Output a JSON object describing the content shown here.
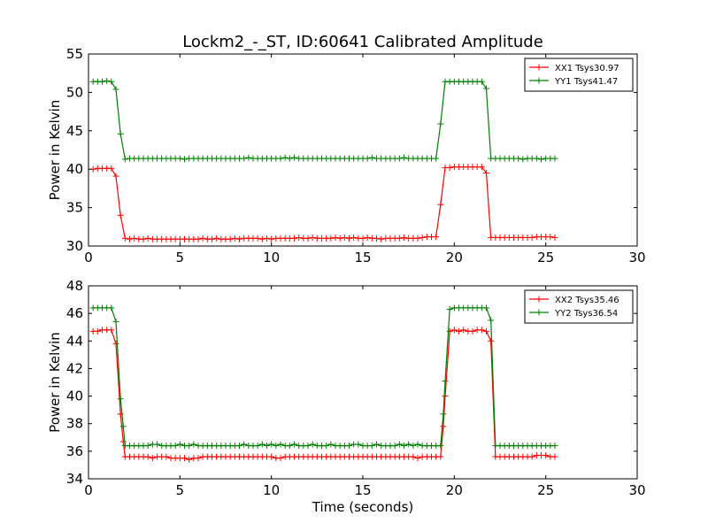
{
  "figure": {
    "title": "Lockm2_-_ST, ID:60641 Calibrated Amplitude",
    "xlabel": "Time (seconds)"
  },
  "chart_data": [
    {
      "type": "line",
      "ylabel": "Power in Kelvin",
      "xlim": [
        0,
        30
      ],
      "ylim": [
        30,
        55
      ],
      "xticks": [
        0,
        5,
        10,
        15,
        20,
        25,
        30
      ],
      "yticks": [
        30,
        35,
        40,
        45,
        50,
        55
      ],
      "legend": "top-right",
      "grid": false,
      "series": [
        {
          "name": "XX1 Tsys30.97",
          "color": "#ff0000",
          "x": [
            0.25,
            0.5,
            0.75,
            1.0,
            1.25,
            1.5,
            1.75,
            2.0,
            2.25,
            2.5,
            2.75,
            3.0,
            3.25,
            3.5,
            3.75,
            4.0,
            4.25,
            4.5,
            4.75,
            5.0,
            5.25,
            5.5,
            5.75,
            6.0,
            6.25,
            6.5,
            6.75,
            7.0,
            7.25,
            7.5,
            7.75,
            8.0,
            8.25,
            8.5,
            8.75,
            9.0,
            9.25,
            9.5,
            9.75,
            10.0,
            10.25,
            10.5,
            10.75,
            11.0,
            11.25,
            11.5,
            11.75,
            12.0,
            12.25,
            12.5,
            12.75,
            13.0,
            13.25,
            13.5,
            13.75,
            14.0,
            14.25,
            14.5,
            14.75,
            15.0,
            15.25,
            15.5,
            15.75,
            16.0,
            16.25,
            16.5,
            16.75,
            17.0,
            17.25,
            17.5,
            17.75,
            18.0,
            18.25,
            18.5,
            18.75,
            19.0,
            19.25,
            19.5,
            19.75,
            20.0,
            20.25,
            20.5,
            20.75,
            21.0,
            21.25,
            21.5,
            21.75,
            22.0,
            22.25,
            22.5,
            22.75,
            23.0,
            23.25,
            23.5,
            23.75,
            24.0,
            24.25,
            24.5,
            24.75,
            25.0,
            25.25,
            25.5
          ],
          "y": [
            40.0,
            40.1,
            40.1,
            40.1,
            40.1,
            39.1,
            34.0,
            31.0,
            30.9,
            31.0,
            30.9,
            30.9,
            31.0,
            30.9,
            30.9,
            30.9,
            30.9,
            30.9,
            30.9,
            30.9,
            30.9,
            30.9,
            30.9,
            30.9,
            31.0,
            30.9,
            30.9,
            31.0,
            30.9,
            30.9,
            30.9,
            31.0,
            30.9,
            31.0,
            31.0,
            31.0,
            31.0,
            30.9,
            31.0,
            30.9,
            31.0,
            31.0,
            31.0,
            31.0,
            31.0,
            31.1,
            31.0,
            31.0,
            31.1,
            31.0,
            31.0,
            31.0,
            31.0,
            31.1,
            31.0,
            31.1,
            31.0,
            31.1,
            31.0,
            31.0,
            31.1,
            31.0,
            31.0,
            30.9,
            31.0,
            31.0,
            31.0,
            31.0,
            31.1,
            31.0,
            31.0,
            31.0,
            31.1,
            31.2,
            31.2,
            31.2,
            35.4,
            40.2,
            40.2,
            40.3,
            40.3,
            40.3,
            40.3,
            40.3,
            40.3,
            40.3,
            39.5,
            31.1,
            31.1,
            31.1,
            31.1,
            31.1,
            31.1,
            31.1,
            31.1,
            31.1,
            31.1,
            31.2,
            31.2,
            31.2,
            31.2,
            31.1
          ]
        },
        {
          "name": "YY1 Tsys41.47",
          "color": "#008000",
          "x": [
            0.25,
            0.5,
            0.75,
            1.0,
            1.25,
            1.5,
            1.75,
            2.0,
            2.25,
            2.5,
            2.75,
            3.0,
            3.25,
            3.5,
            3.75,
            4.0,
            4.25,
            4.5,
            4.75,
            5.0,
            5.25,
            5.5,
            5.75,
            6.0,
            6.25,
            6.5,
            6.75,
            7.0,
            7.25,
            7.5,
            7.75,
            8.0,
            8.25,
            8.5,
            8.75,
            9.0,
            9.25,
            9.5,
            9.75,
            10.0,
            10.25,
            10.5,
            10.75,
            11.0,
            11.25,
            11.5,
            11.75,
            12.0,
            12.25,
            12.5,
            12.75,
            13.0,
            13.25,
            13.5,
            13.75,
            14.0,
            14.25,
            14.5,
            14.75,
            15.0,
            15.25,
            15.5,
            15.75,
            16.0,
            16.25,
            16.5,
            16.75,
            17.0,
            17.25,
            17.5,
            17.75,
            18.0,
            18.25,
            18.5,
            18.75,
            19.0,
            19.25,
            19.5,
            19.75,
            20.0,
            20.25,
            20.5,
            20.75,
            21.0,
            21.25,
            21.5,
            21.75,
            22.0,
            22.25,
            22.5,
            22.75,
            23.0,
            23.25,
            23.5,
            23.75,
            24.0,
            24.25,
            24.5,
            24.75,
            25.0,
            25.25,
            25.5
          ],
          "y": [
            51.4,
            51.4,
            51.4,
            51.5,
            51.4,
            50.4,
            44.6,
            41.3,
            41.4,
            41.4,
            41.4,
            41.4,
            41.4,
            41.4,
            41.4,
            41.4,
            41.4,
            41.4,
            41.4,
            41.4,
            41.3,
            41.4,
            41.4,
            41.4,
            41.4,
            41.4,
            41.4,
            41.4,
            41.4,
            41.4,
            41.4,
            41.4,
            41.4,
            41.4,
            41.5,
            41.4,
            41.4,
            41.4,
            41.4,
            41.4,
            41.4,
            41.4,
            41.5,
            41.4,
            41.5,
            41.4,
            41.4,
            41.4,
            41.4,
            41.4,
            41.4,
            41.4,
            41.4,
            41.4,
            41.4,
            41.4,
            41.4,
            41.4,
            41.4,
            41.4,
            41.4,
            41.5,
            41.4,
            41.4,
            41.4,
            41.4,
            41.4,
            41.4,
            41.5,
            41.4,
            41.4,
            41.4,
            41.4,
            41.4,
            41.4,
            41.4,
            45.9,
            51.4,
            51.4,
            51.4,
            51.4,
            51.4,
            51.4,
            51.4,
            51.4,
            51.4,
            50.5,
            41.4,
            41.4,
            41.4,
            41.4,
            41.4,
            41.4,
            41.4,
            41.3,
            41.4,
            41.4,
            41.4,
            41.3,
            41.4,
            41.4,
            41.4
          ]
        }
      ]
    },
    {
      "type": "line",
      "ylabel": "Power in Kelvin",
      "xlim": [
        0,
        30
      ],
      "ylim": [
        34,
        48
      ],
      "xticks": [
        0,
        5,
        10,
        15,
        20,
        25,
        30
      ],
      "yticks": [
        34,
        36,
        38,
        40,
        42,
        44,
        46,
        48
      ],
      "legend": "top-right",
      "grid": false,
      "series": [
        {
          "name": "XX2 Tsys35.46",
          "color": "#ff0000",
          "x": [
            0.25,
            0.5,
            0.75,
            1.0,
            1.25,
            1.5,
            1.75,
            1.9,
            2.0,
            2.25,
            2.5,
            2.75,
            3.0,
            3.25,
            3.5,
            3.75,
            4.0,
            4.25,
            4.5,
            4.75,
            5.0,
            5.25,
            5.5,
            5.75,
            6.0,
            6.25,
            6.5,
            6.75,
            7.0,
            7.25,
            7.5,
            7.75,
            8.0,
            8.25,
            8.5,
            8.75,
            9.0,
            9.25,
            9.5,
            9.75,
            10.0,
            10.25,
            10.5,
            10.75,
            11.0,
            11.25,
            11.5,
            11.75,
            12.0,
            12.25,
            12.5,
            12.75,
            13.0,
            13.25,
            13.5,
            13.75,
            14.0,
            14.25,
            14.5,
            14.75,
            15.0,
            15.25,
            15.5,
            15.75,
            16.0,
            16.25,
            16.5,
            16.75,
            17.0,
            17.25,
            17.5,
            17.75,
            18.0,
            18.25,
            18.5,
            18.75,
            19.0,
            19.25,
            19.4,
            19.5,
            19.75,
            20.0,
            20.25,
            20.5,
            20.75,
            21.0,
            21.25,
            21.5,
            21.75,
            22.0,
            22.25,
            22.5,
            22.75,
            23.0,
            23.25,
            23.5,
            23.75,
            24.0,
            24.25,
            24.5,
            24.75,
            25.0,
            25.25,
            25.5
          ],
          "y": [
            44.7,
            44.7,
            44.8,
            44.8,
            44.8,
            43.8,
            38.7,
            36.7,
            35.6,
            35.6,
            35.6,
            35.6,
            35.6,
            35.6,
            35.5,
            35.6,
            35.6,
            35.6,
            35.5,
            35.5,
            35.5,
            35.5,
            35.4,
            35.5,
            35.5,
            35.6,
            35.6,
            35.6,
            35.6,
            35.6,
            35.6,
            35.6,
            35.6,
            35.6,
            35.6,
            35.6,
            35.6,
            35.6,
            35.6,
            35.6,
            35.6,
            35.5,
            35.5,
            35.6,
            35.6,
            35.6,
            35.6,
            35.6,
            35.6,
            35.6,
            35.6,
            35.6,
            35.6,
            35.6,
            35.6,
            35.6,
            35.6,
            35.6,
            35.6,
            35.6,
            35.6,
            35.6,
            35.6,
            35.6,
            35.6,
            35.6,
            35.6,
            35.6,
            35.6,
            35.6,
            35.6,
            35.6,
            35.5,
            35.6,
            35.6,
            35.6,
            35.6,
            35.6,
            37.8,
            40.0,
            44.7,
            44.8,
            44.7,
            44.8,
            44.7,
            44.7,
            44.8,
            44.8,
            44.7,
            44.0,
            35.6,
            35.6,
            35.6,
            35.6,
            35.6,
            35.6,
            35.6,
            35.6,
            35.6,
            35.7,
            35.7,
            35.7,
            35.6,
            35.6
          ]
        },
        {
          "name": "YY2 Tsys36.54",
          "color": "#008000",
          "x": [
            0.25,
            0.5,
            0.75,
            1.0,
            1.25,
            1.5,
            1.75,
            1.9,
            2.0,
            2.25,
            2.5,
            2.75,
            3.0,
            3.25,
            3.5,
            3.75,
            4.0,
            4.25,
            4.5,
            4.75,
            5.0,
            5.25,
            5.5,
            5.75,
            6.0,
            6.25,
            6.5,
            6.75,
            7.0,
            7.25,
            7.5,
            7.75,
            8.0,
            8.25,
            8.5,
            8.75,
            9.0,
            9.25,
            9.5,
            9.75,
            10.0,
            10.25,
            10.5,
            10.75,
            11.0,
            11.25,
            11.5,
            11.75,
            12.0,
            12.25,
            12.5,
            12.75,
            13.0,
            13.25,
            13.5,
            13.75,
            14.0,
            14.25,
            14.5,
            14.75,
            15.0,
            15.25,
            15.5,
            15.75,
            16.0,
            16.25,
            16.5,
            16.75,
            17.0,
            17.25,
            17.5,
            17.75,
            18.0,
            18.25,
            18.5,
            18.75,
            19.0,
            19.25,
            19.4,
            19.5,
            19.75,
            20.0,
            20.25,
            20.5,
            20.75,
            21.0,
            21.25,
            21.5,
            21.75,
            22.0,
            22.25,
            22.5,
            22.75,
            23.0,
            23.25,
            23.5,
            23.75,
            24.0,
            24.25,
            24.5,
            24.75,
            25.0,
            25.25,
            25.5
          ],
          "y": [
            46.4,
            46.4,
            46.4,
            46.4,
            46.4,
            45.4,
            39.8,
            37.8,
            36.4,
            36.4,
            36.4,
            36.4,
            36.4,
            36.4,
            36.5,
            36.5,
            36.4,
            36.4,
            36.4,
            36.4,
            36.5,
            36.4,
            36.4,
            36.5,
            36.4,
            36.4,
            36.4,
            36.4,
            36.4,
            36.4,
            36.4,
            36.4,
            36.4,
            36.4,
            36.5,
            36.4,
            36.4,
            36.4,
            36.5,
            36.4,
            36.5,
            36.4,
            36.5,
            36.4,
            36.4,
            36.5,
            36.4,
            36.4,
            36.4,
            36.5,
            36.4,
            36.4,
            36.4,
            36.5,
            36.4,
            36.4,
            36.4,
            36.4,
            36.5,
            36.5,
            36.4,
            36.4,
            36.4,
            36.5,
            36.4,
            36.4,
            36.4,
            36.4,
            36.5,
            36.4,
            36.5,
            36.4,
            36.5,
            36.4,
            36.4,
            36.4,
            36.4,
            36.4,
            38.7,
            41.1,
            46.3,
            46.4,
            46.4,
            46.4,
            46.4,
            46.4,
            46.4,
            46.4,
            46.4,
            45.5,
            36.4,
            36.4,
            36.4,
            36.4,
            36.4,
            36.4,
            36.4,
            36.4,
            36.4,
            36.4,
            36.4,
            36.4,
            36.4,
            36.4
          ]
        }
      ]
    }
  ]
}
